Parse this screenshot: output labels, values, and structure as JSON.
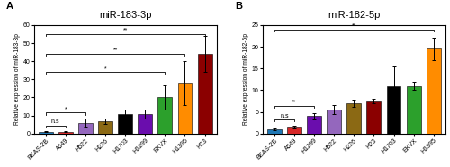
{
  "chart_data": [
    {
      "type": "bar",
      "panel": "A",
      "title": "miR-183-3p",
      "y_label": "Relative expression of miR-183-3p",
      "categories": [
        "BEAS-2B",
        "A549",
        "H522",
        "H226",
        "H1703",
        "H1299",
        "EKVX",
        "H1395",
        "H23"
      ],
      "values": [
        1.0,
        1.0,
        6.0,
        7.0,
        11.0,
        11.0,
        20.0,
        28.0,
        44.0
      ],
      "errors": [
        0.3,
        0.3,
        2.5,
        1.5,
        2.5,
        2.5,
        6.5,
        12.0,
        10.0
      ],
      "colors": [
        "#1f77b4",
        "#d62728",
        "#9467bd",
        "#8B6914",
        "#000000",
        "#6A0DAD",
        "#2ca02c",
        "#FF8C00",
        "#8B0000"
      ],
      "ylim": [
        0,
        60
      ],
      "yticks": [
        0,
        10,
        20,
        30,
        40,
        50,
        60
      ],
      "annotations": [
        {
          "text": "n.s",
          "x1": "BEAS-2B",
          "x2": "A549",
          "y": 3.5
        },
        {
          "text": "*",
          "x1": "BEAS-2B",
          "x2": "H522",
          "y": 10.5
        },
        {
          "text": "*",
          "x1": "BEAS-2B",
          "x2": "EKVX",
          "y": 33
        },
        {
          "text": "**",
          "x1": "BEAS-2B",
          "x2": "H1395",
          "y": 43
        },
        {
          "text": "**",
          "x1": "BEAS-2B",
          "x2": "H23",
          "y": 54
        }
      ]
    },
    {
      "type": "bar",
      "panel": "B",
      "title": "miR-182-5p",
      "y_label": "Relative expression of miR-182-5p",
      "categories": [
        "BEAS-2B",
        "A549",
        "H1299",
        "H522",
        "H226",
        "H23",
        "H1703",
        "EKVX",
        "H1395"
      ],
      "values": [
        1.0,
        1.5,
        4.0,
        5.5,
        7.0,
        7.5,
        11.0,
        11.0,
        19.5
      ],
      "errors": [
        0.2,
        0.3,
        0.8,
        1.0,
        0.8,
        0.5,
        4.5,
        1.0,
        2.5
      ],
      "colors": [
        "#1f77b4",
        "#d62728",
        "#6A0DAD",
        "#9467bd",
        "#8B6914",
        "#8B0000",
        "#000000",
        "#2ca02c",
        "#FF8C00"
      ],
      "ylim": [
        0,
        25
      ],
      "yticks": [
        0,
        5,
        10,
        15,
        20,
        25
      ],
      "annotations": [
        {
          "text": "n.s",
          "x1": "BEAS-2B",
          "x2": "A549",
          "y": 2.8
        },
        {
          "text": "**",
          "x1": "BEAS-2B",
          "x2": "H1299",
          "y": 6.0
        },
        {
          "text": "**",
          "x1": "BEAS-2B",
          "x2": "H1395",
          "y": 23.5
        }
      ]
    }
  ]
}
